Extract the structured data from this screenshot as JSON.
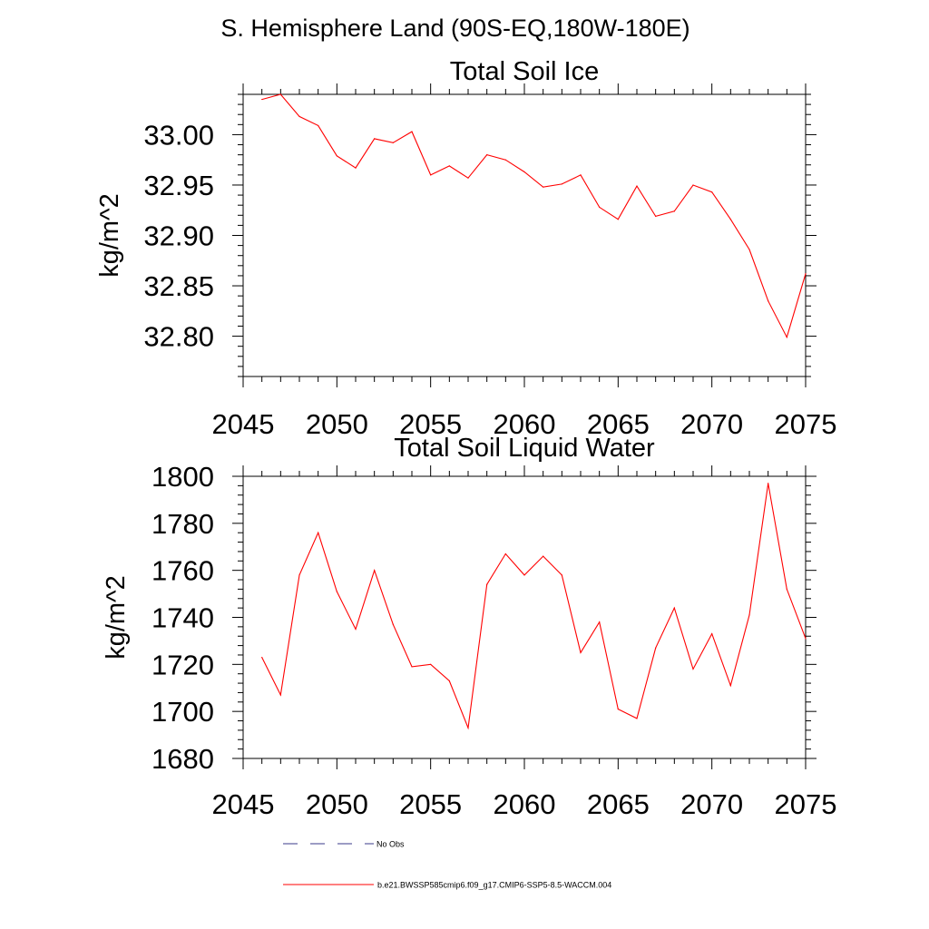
{
  "page": {
    "title": "S. Hemisphere Land (90S-EQ,180W-180E)"
  },
  "colors": {
    "series": "#ff0000",
    "no_obs": "#3a3a8a",
    "axis": "#000000"
  },
  "legend": [
    {
      "label": "No Obs",
      "style": "dashed",
      "color": "#3a3a8a"
    },
    {
      "label": "b.e21.BWSSP585cmip6.f09_g17.CMIP6-SSP5-8.5-WACCM.004",
      "style": "solid",
      "color": "#ff0000"
    }
  ],
  "chart_data": [
    {
      "type": "line",
      "title": "Total Soil Ice",
      "ylabel": "kg/m^2",
      "xlabel": "",
      "xlim": [
        2045,
        2075
      ],
      "ylim": [
        32.76,
        33.04
      ],
      "x_ticks": [
        "2045",
        "2050",
        "2055",
        "2060",
        "2065",
        "2070",
        "2075"
      ],
      "y_ticks": [
        "32.80",
        "32.85",
        "32.90",
        "32.95",
        "33.00"
      ],
      "grid": false,
      "series": [
        {
          "color": "#ff0000",
          "x": [
            2046,
            2047,
            2048,
            2049,
            2050,
            2051,
            2052,
            2053,
            2054,
            2055,
            2056,
            2057,
            2058,
            2059,
            2060,
            2061,
            2062,
            2063,
            2064,
            2065,
            2066,
            2067,
            2068,
            2069,
            2070,
            2071,
            2072,
            2073,
            2074,
            2075
          ],
          "values": [
            33.035,
            33.04,
            33.018,
            33.009,
            32.979,
            32.967,
            32.996,
            32.992,
            33.003,
            32.96,
            32.969,
            32.957,
            32.98,
            32.975,
            32.963,
            32.948,
            32.951,
            32.96,
            32.928,
            32.916,
            32.949,
            32.919,
            32.924,
            32.95,
            32.943,
            32.916,
            32.886,
            32.835,
            32.799,
            32.862
          ]
        }
      ]
    },
    {
      "type": "line",
      "title": "Total Soil Liquid Water",
      "ylabel": "kg/m^2",
      "xlabel": "",
      "xlim": [
        2045,
        2075
      ],
      "ylim": [
        1680,
        1800
      ],
      "x_ticks": [
        "2045",
        "2050",
        "2055",
        "2060",
        "2065",
        "2070",
        "2075"
      ],
      "y_ticks": [
        "1680",
        "1700",
        "1720",
        "1740",
        "1760",
        "1780",
        "1800"
      ],
      "grid": false,
      "series": [
        {
          "color": "#ff0000",
          "x": [
            2046,
            2047,
            2048,
            2049,
            2050,
            2051,
            2052,
            2053,
            2054,
            2055,
            2056,
            2057,
            2058,
            2059,
            2060,
            2061,
            2062,
            2063,
            2064,
            2065,
            2066,
            2067,
            2068,
            2069,
            2070,
            2071,
            2072,
            2073,
            2074,
            2075
          ],
          "values": [
            1723,
            1707,
            1758,
            1776,
            1751,
            1735,
            1760,
            1737,
            1719,
            1720,
            1713,
            1693,
            1754,
            1767,
            1758,
            1766,
            1758,
            1725,
            1738,
            1701,
            1697,
            1727,
            1744,
            1718,
            1733,
            1711,
            1741,
            1797,
            1752,
            1731
          ]
        }
      ]
    }
  ]
}
